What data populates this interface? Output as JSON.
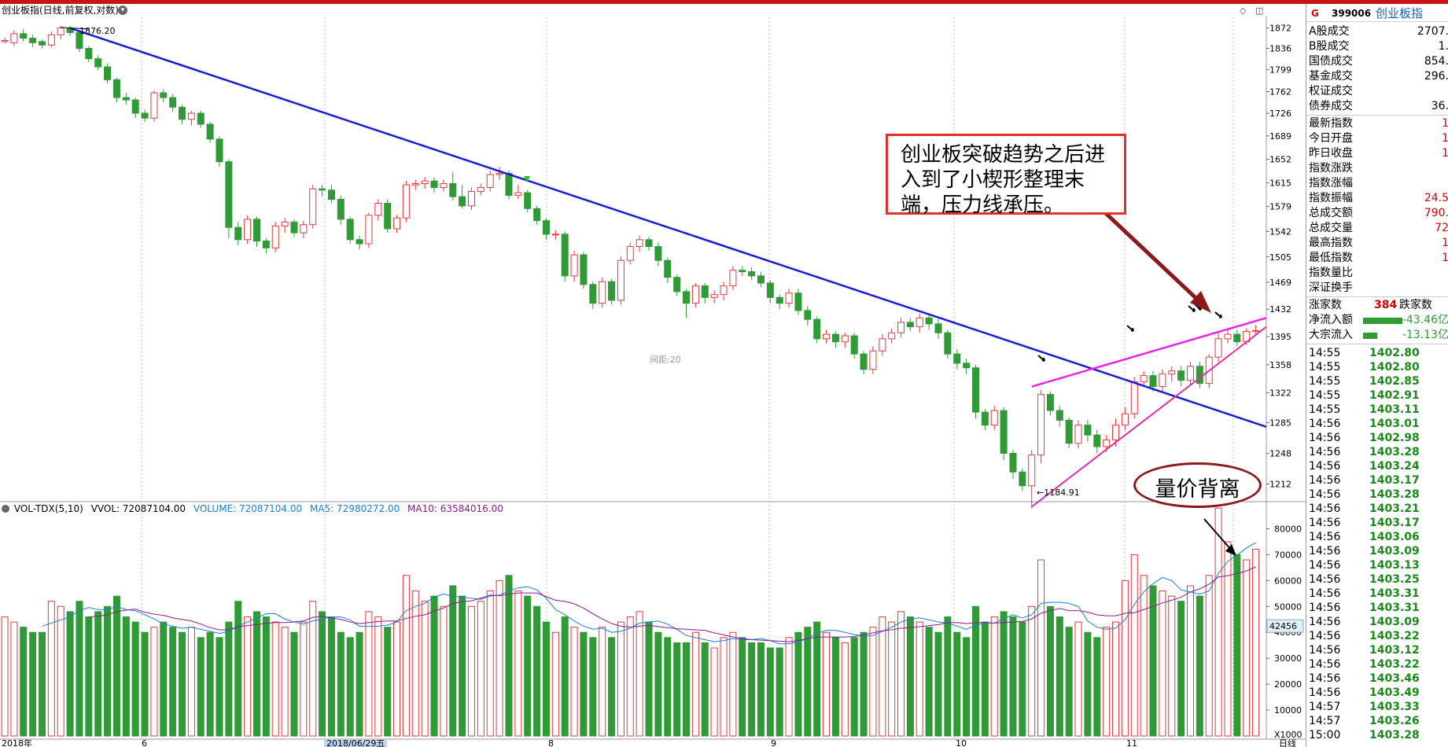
{
  "header": {
    "title": "创业板指(日线,前复权,对数)",
    "arrow_icon": "chevron-down-icon",
    "ctrl_1": "◇",
    "ctrl_2": "◫"
  },
  "annotations": {
    "max_price": "1876.20",
    "min_price": "←1184.91",
    "midline": "间距:20",
    "last_volume": "42456",
    "box_text": "创业板突破趋势之后进入到了小楔形整理末端，压力线承压。",
    "oval_text": "量价背离"
  },
  "volume_header": {
    "indicator": "VOL-TDX(5,10)",
    "vvol": "VVOL: 72087104.00",
    "volume": "VOLUME: 72087104.00",
    "ma5": "MA5: 72980272.00",
    "ma10": "MA10: 63584016.00"
  },
  "colors": {
    "up": "#e8373f",
    "down": "#2f9a36",
    "trendline": "#1b1bd4",
    "wedge": "#ee22ee",
    "wedge_lower": "#e82aa8",
    "ma5": "#1e7fd6",
    "ma10": "#8e1a8e",
    "arrow": "#8b1a1a"
  },
  "price_axis": [
    "1872",
    "1836",
    "1799",
    "1762",
    "1726",
    "1689",
    "1652",
    "1615",
    "1579",
    "1542",
    "1505",
    "1469",
    "1432",
    "1395",
    "1358",
    "1322",
    "1285",
    "1248",
    "1212"
  ],
  "volume_axis": [
    "80000",
    "70000",
    "60000",
    "50000",
    "40000",
    "30000",
    "20000",
    "10000",
    "X1000"
  ],
  "date_axis": [
    "2018年",
    "6",
    "2018/06/29五",
    "8",
    "9",
    "10",
    "11",
    "日线"
  ],
  "right_panel": {
    "g_badge": "G",
    "code": "399006",
    "name": "创业板指",
    "stats_a": [
      {
        "label": "A股成交",
        "value": "2707."
      },
      {
        "label": "B股成交",
        "value": "1."
      },
      {
        "label": "国债成交",
        "value": "854."
      },
      {
        "label": "基金成交",
        "value": "296."
      },
      {
        "label": "权证成交",
        "value": ""
      },
      {
        "label": "债券成交",
        "value": "36."
      }
    ],
    "stats_b": [
      {
        "label": "最新指数",
        "value": "1"
      },
      {
        "label": "今日开盘",
        "value": "1"
      },
      {
        "label": "昨日收盘",
        "value": "1"
      },
      {
        "label": "指数涨跌",
        "value": ""
      },
      {
        "label": "指数涨幅",
        "value": ""
      },
      {
        "label": "指数振幅",
        "value": "24.5"
      },
      {
        "label": "总成交额",
        "value": "790."
      },
      {
        "label": "总成交量",
        "value": "72"
      },
      {
        "label": "最高指数",
        "value": "1"
      },
      {
        "label": "最低指数",
        "value": "1"
      },
      {
        "label": "指数量比",
        "value": ""
      },
      {
        "label": "深证换手",
        "value": ""
      }
    ],
    "rise_label": "涨家数",
    "rise_value": "384",
    "fall_label": "跌家数",
    "net_inflow_label": "净流入额",
    "net_inflow_value": "-43.46亿",
    "block_inflow_label": "大宗流入",
    "block_inflow_value": "-13.13亿",
    "ticks": [
      {
        "t": "14:55",
        "p": "1402.80"
      },
      {
        "t": "14:55",
        "p": "1402.80"
      },
      {
        "t": "14:55",
        "p": "1402.85"
      },
      {
        "t": "14:55",
        "p": "1402.91"
      },
      {
        "t": "14:55",
        "p": "1403.11"
      },
      {
        "t": "14:56",
        "p": "1403.01"
      },
      {
        "t": "14:56",
        "p": "1402.98"
      },
      {
        "t": "14:56",
        "p": "1403.28"
      },
      {
        "t": "14:56",
        "p": "1403.24"
      },
      {
        "t": "14:56",
        "p": "1403.17"
      },
      {
        "t": "14:56",
        "p": "1403.28"
      },
      {
        "t": "14:56",
        "p": "1403.21"
      },
      {
        "t": "14:56",
        "p": "1403.17"
      },
      {
        "t": "14:56",
        "p": "1403.06"
      },
      {
        "t": "14:56",
        "p": "1403.09"
      },
      {
        "t": "14:56",
        "p": "1403.13"
      },
      {
        "t": "14:56",
        "p": "1403.25"
      },
      {
        "t": "14:56",
        "p": "1403.31"
      },
      {
        "t": "14:56",
        "p": "1403.31"
      },
      {
        "t": "14:56",
        "p": "1403.09"
      },
      {
        "t": "14:56",
        "p": "1403.22"
      },
      {
        "t": "14:56",
        "p": "1403.12"
      },
      {
        "t": "14:56",
        "p": "1403.22"
      },
      {
        "t": "14:56",
        "p": "1403.46"
      },
      {
        "t": "14:56",
        "p": "1403.49"
      },
      {
        "t": "14:57",
        "p": "1403.33"
      },
      {
        "t": "14:57",
        "p": "1403.26"
      },
      {
        "t": "15:00",
        "p": "1403.28"
      }
    ]
  },
  "chart_data": {
    "type": "candlestick",
    "title": "创业板指(日线,前复权,对数)",
    "y_scale": "log",
    "ylim": [
      1190,
      1880
    ],
    "volume_ylim": [
      0,
      85000
    ],
    "candles": [
      [
        1848,
        1850,
        1845,
        1855,
        1.0,
        46000
      ],
      [
        1846,
        1862,
        1840,
        1868,
        1.0,
        44000
      ],
      [
        1862,
        1854,
        1848,
        1870,
        1.5,
        42000
      ],
      [
        1854,
        1846,
        1838,
        1860,
        2.5,
        40000
      ],
      [
        1848,
        1842,
        1836,
        1852,
        3.5,
        40000
      ],
      [
        1842,
        1860,
        1838,
        1866,
        4.5,
        52000
      ],
      [
        1860,
        1872,
        1852,
        1876,
        5.5,
        50000
      ],
      [
        1872,
        1864,
        1858,
        1876,
        6.5,
        48000
      ],
      [
        1864,
        1836,
        1830,
        1868,
        7.5,
        52000
      ],
      [
        1836,
        1818,
        1812,
        1840,
        8.5,
        46000
      ],
      [
        1818,
        1804,
        1798,
        1824,
        9.5,
        48000
      ],
      [
        1804,
        1782,
        1776,
        1810,
        10.5,
        50000
      ],
      [
        1782,
        1752,
        1744,
        1786,
        11.5,
        54000
      ],
      [
        1752,
        1748,
        1740,
        1760,
        12.5,
        46000
      ],
      [
        1748,
        1726,
        1718,
        1752,
        13.5,
        44000
      ],
      [
        1726,
        1718,
        1712,
        1732,
        14.5,
        40000
      ],
      [
        1718,
        1760,
        1712,
        1764,
        15.5,
        42000
      ],
      [
        1760,
        1752,
        1744,
        1766,
        16.5,
        44000
      ],
      [
        1752,
        1736,
        1728,
        1758,
        17.5,
        42000
      ],
      [
        1736,
        1716,
        1708,
        1740,
        18.5,
        40000
      ],
      [
        1716,
        1726,
        1706,
        1730,
        19.5,
        42000
      ],
      [
        1726,
        1708,
        1702,
        1730,
        20.5,
        38000
      ],
      [
        1708,
        1684,
        1678,
        1712,
        21.5,
        40000
      ],
      [
        1684,
        1648,
        1640,
        1688,
        22.5,
        38000
      ],
      [
        1648,
        1548,
        1532,
        1652,
        23.5,
        44000
      ],
      [
        1548,
        1530,
        1522,
        1556,
        24.5,
        52000
      ],
      [
        1530,
        1560,
        1524,
        1566,
        25.5,
        46000
      ],
      [
        1560,
        1528,
        1520,
        1564,
        26.5,
        48000
      ],
      [
        1528,
        1518,
        1510,
        1532,
        27.5,
        46000
      ],
      [
        1518,
        1550,
        1512,
        1556,
        28.5,
        44000
      ],
      [
        1550,
        1556,
        1540,
        1562,
        29.5,
        42000
      ],
      [
        1556,
        1540,
        1534,
        1560,
        30.5,
        40000
      ],
      [
        1540,
        1552,
        1532,
        1558,
        31.5,
        44000
      ],
      [
        1552,
        1606,
        1546,
        1612,
        32.5,
        52000
      ],
      [
        1606,
        1604,
        1594,
        1612,
        33.5,
        48000
      ],
      [
        1604,
        1590,
        1584,
        1612,
        34.5,
        46000
      ],
      [
        1590,
        1560,
        1552,
        1596,
        35.5,
        40000
      ],
      [
        1560,
        1530,
        1524,
        1564,
        36.5,
        38000
      ],
      [
        1530,
        1524,
        1516,
        1536,
        37.5,
        40000
      ],
      [
        1524,
        1566,
        1518,
        1570,
        38.5,
        48000
      ],
      [
        1566,
        1584,
        1558,
        1590,
        39.5,
        46000
      ],
      [
        1584,
        1546,
        1540,
        1590,
        40.5,
        42000
      ],
      [
        1546,
        1562,
        1540,
        1566,
        41.5,
        44000
      ],
      [
        1562,
        1612,
        1556,
        1618,
        42.5,
        62000
      ],
      [
        1612,
        1614,
        1604,
        1620,
        43.5,
        56000
      ],
      [
        1614,
        1618,
        1606,
        1624,
        44.5,
        52000
      ],
      [
        1618,
        1608,
        1600,
        1624,
        45.5,
        54000
      ],
      [
        1608,
        1614,
        1602,
        1620,
        46.5,
        50000
      ],
      [
        1614,
        1594,
        1588,
        1632,
        47.5,
        58000
      ],
      [
        1594,
        1580,
        1576,
        1612,
        48.5,
        54000
      ],
      [
        1580,
        1602,
        1574,
        1608,
        49.5,
        50000
      ],
      [
        1602,
        1608,
        1596,
        1614,
        50.5,
        52000
      ],
      [
        1608,
        1628,
        1602,
        1634,
        51.5,
        56000
      ],
      [
        1628,
        1630,
        1620,
        1640,
        52.5,
        60000
      ],
      [
        1630,
        1596,
        1590,
        1634,
        53.5,
        62000
      ],
      [
        1596,
        1600,
        1590,
        1612,
        54.5,
        56000
      ],
      [
        1600,
        1576,
        1570,
        1604,
        55.5,
        54000
      ],
      [
        1576,
        1558,
        1552,
        1580,
        56.5,
        50000
      ],
      [
        1558,
        1538,
        1530,
        1562,
        57.5,
        44000
      ],
      [
        1538,
        1538,
        1530,
        1544,
        58.5,
        40000
      ],
      [
        1538,
        1478,
        1470,
        1542,
        59.5,
        46000
      ],
      [
        1478,
        1508,
        1470,
        1514,
        60.5,
        42000
      ],
      [
        1508,
        1466,
        1460,
        1512,
        61.5,
        40000
      ],
      [
        1466,
        1440,
        1432,
        1470,
        62.5,
        38000
      ],
      [
        1440,
        1470,
        1434,
        1476,
        63.5,
        42000
      ],
      [
        1470,
        1444,
        1438,
        1474,
        64.5,
        38000
      ],
      [
        1444,
        1500,
        1438,
        1506,
        65.5,
        44000
      ],
      [
        1500,
        1520,
        1494,
        1526,
        66.5,
        46000
      ],
      [
        1520,
        1530,
        1512,
        1536,
        67.5,
        48000
      ],
      [
        1530,
        1520,
        1514,
        1534,
        68.5,
        44000
      ],
      [
        1520,
        1500,
        1492,
        1526,
        69.5,
        40000
      ],
      [
        1500,
        1476,
        1468,
        1504,
        70.5,
        38000
      ],
      [
        1476,
        1456,
        1450,
        1480,
        71.5,
        36000
      ],
      [
        1456,
        1440,
        1420,
        1460,
        72.5,
        36000
      ],
      [
        1440,
        1464,
        1434,
        1468,
        73.5,
        40000
      ],
      [
        1464,
        1448,
        1440,
        1468,
        74.5,
        36000
      ],
      [
        1448,
        1452,
        1440,
        1458,
        75.5,
        34000
      ],
      [
        1452,
        1464,
        1444,
        1470,
        76.5,
        38000
      ],
      [
        1464,
        1486,
        1458,
        1492,
        77.5,
        40000
      ],
      [
        1486,
        1484,
        1478,
        1492,
        78.5,
        38000
      ],
      [
        1484,
        1478,
        1472,
        1490,
        79.5,
        36000
      ],
      [
        1478,
        1468,
        1462,
        1484,
        80.5,
        36000
      ],
      [
        1468,
        1448,
        1440,
        1472,
        81.5,
        34000
      ],
      [
        1448,
        1440,
        1432,
        1452,
        82.5,
        34000
      ],
      [
        1440,
        1454,
        1434,
        1460,
        83.5,
        38000
      ],
      [
        1454,
        1430,
        1424,
        1460,
        84.5,
        40000
      ],
      [
        1430,
        1418,
        1410,
        1436,
        85.5,
        42000
      ],
      [
        1418,
        1392,
        1386,
        1422,
        86.5,
        44000
      ],
      [
        1392,
        1398,
        1386,
        1404,
        87.5,
        40000
      ],
      [
        1398,
        1388,
        1380,
        1402,
        88.5,
        38000
      ],
      [
        1388,
        1396,
        1380,
        1400,
        89.5,
        36000
      ],
      [
        1396,
        1372,
        1366,
        1400,
        90.5,
        38000
      ],
      [
        1372,
        1352,
        1346,
        1376,
        91.5,
        40000
      ],
      [
        1352,
        1376,
        1346,
        1382,
        92.5,
        42000
      ],
      [
        1376,
        1392,
        1370,
        1398,
        93.5,
        46000
      ],
      [
        1392,
        1400,
        1386,
        1406,
        94.5,
        44000
      ],
      [
        1400,
        1414,
        1394,
        1420,
        95.5,
        48000
      ],
      [
        1414,
        1408,
        1402,
        1420,
        96.5,
        46000
      ],
      [
        1408,
        1420,
        1400,
        1426,
        97.5,
        44000
      ],
      [
        1420,
        1412,
        1404,
        1426,
        98.5,
        42000
      ],
      [
        1412,
        1400,
        1392,
        1418,
        99.5,
        40000
      ],
      [
        1400,
        1372,
        1366,
        1404,
        100.5,
        46000
      ],
      [
        1372,
        1360,
        1352,
        1378,
        101.5,
        40000
      ],
      [
        1360,
        1354,
        1346,
        1366,
        102.5,
        38000
      ],
      [
        1354,
        1298,
        1290,
        1358,
        103.5,
        50000
      ],
      [
        1298,
        1282,
        1276,
        1302,
        104.5,
        44000
      ],
      [
        1282,
        1300,
        1276,
        1306,
        105.5,
        46000
      ],
      [
        1300,
        1248,
        1240,
        1304,
        106.5,
        48000
      ],
      [
        1248,
        1226,
        1218,
        1252,
        107.5,
        46000
      ],
      [
        1226,
        1210,
        1204,
        1230,
        108.5,
        44000
      ],
      [
        1210,
        1246,
        1184,
        1252,
        109.5,
        50000
      ],
      [
        1246,
        1320,
        1236,
        1326,
        110.5,
        68000
      ],
      [
        1320,
        1300,
        1294,
        1324,
        111.5,
        50000
      ],
      [
        1300,
        1288,
        1280,
        1306,
        112.5,
        46000
      ],
      [
        1288,
        1260,
        1254,
        1292,
        113.5,
        42000
      ],
      [
        1260,
        1282,
        1254,
        1288,
        114.5,
        44000
      ],
      [
        1282,
        1270,
        1262,
        1288,
        115.5,
        40000
      ],
      [
        1270,
        1256,
        1248,
        1276,
        116.5,
        38000
      ],
      [
        1256,
        1264,
        1250,
        1270,
        117.5,
        42000
      ],
      [
        1264,
        1282,
        1256,
        1290,
        118.5,
        44000
      ],
      [
        1282,
        1296,
        1276,
        1304,
        119.5,
        60000
      ],
      [
        1296,
        1336,
        1290,
        1342,
        120.5,
        70000
      ],
      [
        1336,
        1344,
        1330,
        1350,
        121.5,
        62000
      ],
      [
        1344,
        1330,
        1324,
        1350,
        122.5,
        58000
      ],
      [
        1330,
        1346,
        1324,
        1352,
        123.5,
        56000
      ],
      [
        1346,
        1350,
        1336,
        1356,
        124.5,
        54000
      ],
      [
        1350,
        1338,
        1330,
        1356,
        125.5,
        52000
      ],
      [
        1338,
        1356,
        1332,
        1362,
        126.5,
        58000
      ],
      [
        1356,
        1334,
        1328,
        1362,
        127.5,
        54000
      ],
      [
        1334,
        1368,
        1328,
        1372,
        128.5,
        62000
      ],
      [
        1368,
        1392,
        1362,
        1400,
        129.5,
        88000
      ],
      [
        1392,
        1398,
        1386,
        1404,
        130.5,
        75000
      ],
      [
        1398,
        1388,
        1382,
        1404,
        131.5,
        70000
      ],
      [
        1388,
        1402,
        1384,
        1406,
        132.5,
        68000
      ],
      [
        1402,
        1403,
        1396,
        1410,
        133.5,
        72087
      ]
    ]
  }
}
